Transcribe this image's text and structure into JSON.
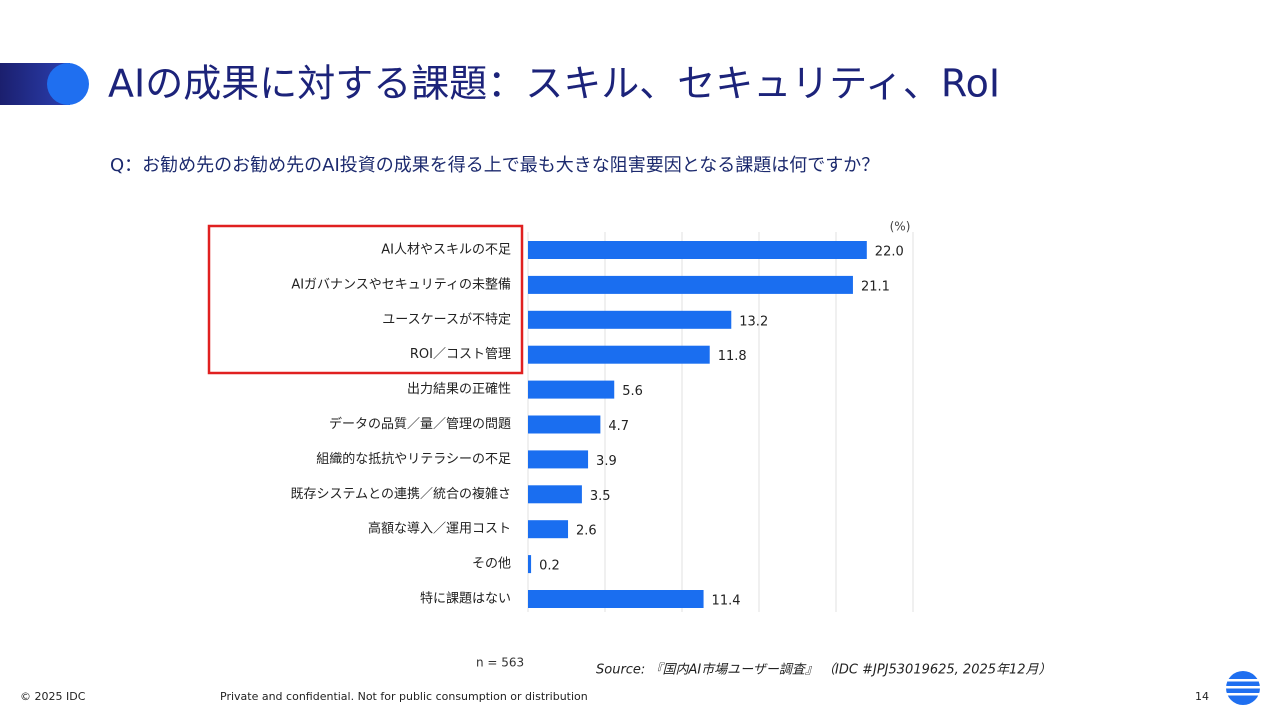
{
  "slide": {
    "title": "AIの成果に対する課題：スキル、セキュリティ、RoI",
    "question": "Q：お勧め先のお勧め先のAI投資の成果を得る上で最も大きな阻害要因となる課題は何ですか？",
    "sample": "n = 563",
    "source": "Source: 『国内AI市場ユーザー調査』 （IDC #JPJ53019625, 2025年12月）",
    "copyright": "© 2025 IDC",
    "confidential": "Private and confidential. Not for public consumption or distribution",
    "page": "14"
  },
  "chart_data": {
    "type": "hbar",
    "unit_label": "(%)",
    "color": "#1a6ef0",
    "categories": [
      "AI人材やスキルの不足",
      "AIガバナンスやセキュリティの未整備",
      "ユースケースが不特定",
      "ROI／コスト管理",
      "出力結果の正確性",
      "データの品質／量／管理の問題",
      "組織的な抵抗やリテラシーの不足",
      "既存システムとの連携／統合の複雑さ",
      "高額な導入／運用コスト",
      "その他",
      "特に課題はない"
    ],
    "values": [
      22.0,
      21.1,
      13.2,
      11.8,
      5.6,
      4.7,
      3.9,
      3.5,
      2.6,
      0.2,
      11.4
    ],
    "value_labels": [
      "22.0",
      "21.1",
      "13.2",
      "11.8",
      "5.6",
      "4.7",
      "3.9",
      "3.5",
      "2.6",
      "0.2",
      "11.4"
    ],
    "xlim": [
      0,
      25
    ],
    "xticks": [
      0,
      5,
      10,
      15,
      20,
      25
    ],
    "grid": true
  }
}
